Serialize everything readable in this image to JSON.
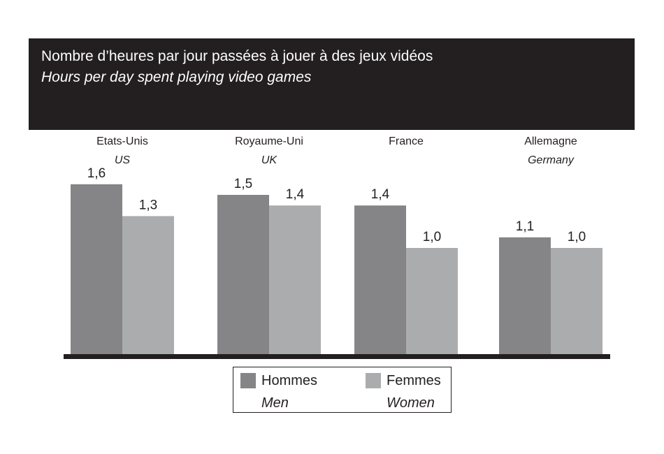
{
  "title": {
    "fr": "Nombre d’heures par jour passées à jouer à des jeux vidéos",
    "en": "Hours per day spent playing video games"
  },
  "colors": {
    "men": "#858587",
    "women": "#abacae",
    "band": "#231f20",
    "baseline": "#231f20"
  },
  "chart_data": {
    "type": "bar",
    "categories": [
      {
        "fr": "Etats-Unis",
        "en": "US"
      },
      {
        "fr": "Royaume-Uni",
        "en": "UK"
      },
      {
        "fr": "France",
        "en": ""
      },
      {
        "fr": "Allemagne",
        "en": "Germany"
      }
    ],
    "series": [
      {
        "name": "Hommes / Men",
        "values": [
          1.6,
          1.5,
          1.4,
          1.1
        ],
        "labels": [
          "1,6",
          "1,5",
          "1,4",
          "1,1"
        ]
      },
      {
        "name": "Femmes / Women",
        "values": [
          1.3,
          1.4,
          1.0,
          1.0
        ],
        "labels": [
          "1,3",
          "1,4",
          "1,0",
          "1,0"
        ]
      }
    ],
    "ylim": [
      0,
      1.6
    ],
    "grid": false,
    "legend_position": "bottom-center"
  },
  "legend": {
    "men": {
      "fr": "Hommes",
      "en": "Men"
    },
    "women": {
      "fr": "Femmes",
      "en": "Women"
    }
  }
}
